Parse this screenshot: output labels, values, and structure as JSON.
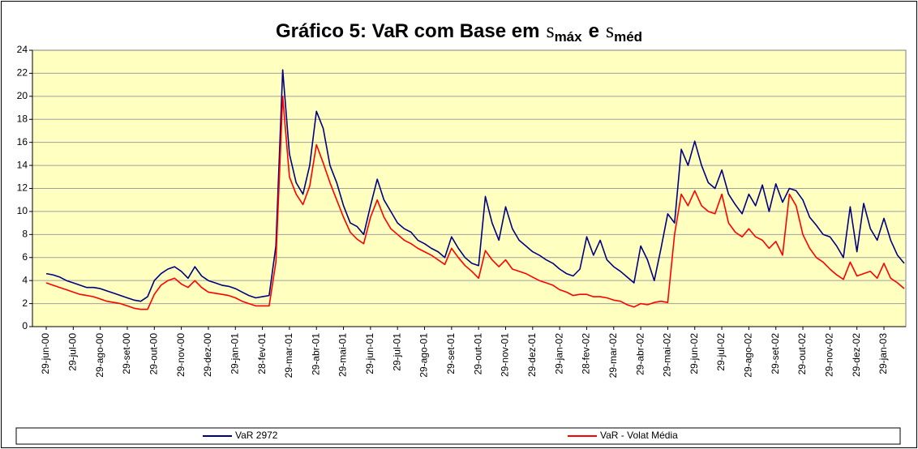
{
  "chart_data": {
    "type": "line",
    "title": [
      {
        "text": "Gráfico 5: VaR com Base em"
      },
      {
        "text": "s",
        "symbol": true
      },
      {
        "text": "máx",
        "sub": true
      },
      {
        "text": "e"
      },
      {
        "text": "s",
        "symbol": true
      },
      {
        "text": "méd",
        "sub": true
      }
    ],
    "ylim": [
      0,
      24
    ],
    "yticks": [
      0,
      2,
      4,
      6,
      8,
      10,
      12,
      14,
      16,
      18,
      20,
      22,
      24
    ],
    "grid": true,
    "legend": "bottom",
    "categories": [
      "29-jun-00",
      null,
      null,
      null,
      "29-jul-00",
      null,
      null,
      null,
      "29-ago-00",
      null,
      null,
      null,
      "29-set-00",
      null,
      null,
      null,
      "29-out-00",
      null,
      null,
      null,
      "29-nov-00",
      null,
      null,
      null,
      "29-dez-00",
      null,
      null,
      null,
      "29-jan-01",
      null,
      null,
      null,
      "28-fev-01",
      null,
      null,
      null,
      "29-mar-01",
      null,
      null,
      null,
      "29-abr-01",
      null,
      null,
      null,
      "29-mai-01",
      null,
      null,
      null,
      "29-jun-01",
      null,
      null,
      null,
      "29-jul-01",
      null,
      null,
      null,
      "29-ago-01",
      null,
      null,
      null,
      "29-set-01",
      null,
      null,
      null,
      "29-out-01",
      null,
      null,
      null,
      "29-nov-01",
      null,
      null,
      null,
      "29-dez-01",
      null,
      null,
      null,
      "29-jan-02",
      null,
      null,
      null,
      "28-fev-02",
      null,
      null,
      null,
      "29-mar-02",
      null,
      null,
      null,
      "29-abr-02",
      null,
      null,
      null,
      "29-mai-02",
      null,
      null,
      null,
      "29-jun-02",
      null,
      null,
      null,
      "29-jul-02",
      null,
      null,
      null,
      "29-ago-02",
      null,
      null,
      null,
      "29-set-02",
      null,
      null,
      null,
      "29-out-02",
      null,
      null,
      null,
      "29-nov-02",
      null,
      null,
      null,
      "29-dez-02",
      null,
      null,
      null,
      "29-jan-03",
      null,
      null,
      null
    ],
    "series": [
      {
        "name": "VaR 2972",
        "color": "#000080",
        "values": [
          4.6,
          4.5,
          4.3,
          4.0,
          3.8,
          3.6,
          3.4,
          3.4,
          3.3,
          3.1,
          2.9,
          2.7,
          2.5,
          2.3,
          2.2,
          2.6,
          4.0,
          4.6,
          5.0,
          5.2,
          4.8,
          4.2,
          5.2,
          4.4,
          4.0,
          3.8,
          3.6,
          3.5,
          3.3,
          3.0,
          2.7,
          2.5,
          2.6,
          2.7,
          7.0,
          22.3,
          15,
          12.5,
          11.5,
          14,
          18.7,
          17.2,
          14,
          12.5,
          10.5,
          9.0,
          8.7,
          8.0,
          10.5,
          12.8,
          11.0,
          10.0,
          9.0,
          8.5,
          8.2,
          7.5,
          7.2,
          6.8,
          6.5,
          6.0,
          7.8,
          6.8,
          6.0,
          5.5,
          5.3,
          11.3,
          9.0,
          7.5,
          10.4,
          8.5,
          7.5,
          7.0,
          6.5,
          6.2,
          5.8,
          5.5,
          5.0,
          4.6,
          4.4,
          5.0,
          7.8,
          6.2,
          7.5,
          5.8,
          5.2,
          4.8,
          4.3,
          3.8,
          7.0,
          5.8,
          4.0,
          6.8,
          9.8,
          9.0,
          15.4,
          14.0,
          16.1,
          14.0,
          12.5,
          12.0,
          13.6,
          11.5,
          10.6,
          9.8,
          11.5,
          10.5,
          12.3,
          10.0,
          12.4,
          10.8,
          12.0,
          11.8,
          11.0,
          9.5,
          8.8,
          8.0,
          7.8,
          7.0,
          6.0,
          10.4,
          6.5,
          10.7,
          8.5,
          7.5,
          9.4,
          7.5,
          6.2,
          5.5
        ]
      },
      {
        "name": "VaR - Volat Média",
        "color": "#ff0000",
        "values": [
          3.8,
          3.6,
          3.4,
          3.2,
          3.0,
          2.8,
          2.7,
          2.6,
          2.4,
          2.2,
          2.1,
          2.0,
          1.8,
          1.6,
          1.5,
          1.5,
          2.8,
          3.6,
          4.0,
          4.2,
          3.7,
          3.4,
          4.0,
          3.4,
          3.0,
          2.9,
          2.8,
          2.7,
          2.5,
          2.2,
          2.0,
          1.8,
          1.8,
          1.8,
          5.6,
          20.0,
          13,
          11.5,
          10.6,
          12.2,
          15.8,
          14.2,
          12.5,
          11,
          9.5,
          8.2,
          7.6,
          7.2,
          9.5,
          11.0,
          9.5,
          8.5,
          8,
          7.5,
          7.2,
          6.8,
          6.5,
          6.2,
          5.8,
          5.4,
          6.8,
          6.0,
          5.3,
          4.8,
          4.2,
          6.6,
          5.8,
          5.2,
          5.8,
          5.0,
          4.8,
          4.6,
          4.3,
          4.0,
          3.8,
          3.6,
          3.2,
          3.0,
          2.7,
          2.8,
          2.8,
          2.6,
          2.6,
          2.5,
          2.3,
          2.2,
          1.9,
          1.7,
          2.0,
          1.9,
          2.1,
          2.2,
          2.1,
          8.0,
          11.5,
          10.5,
          11.8,
          10.5,
          10.0,
          9.8,
          11.5,
          9.0,
          8.2,
          7.8,
          8.5,
          7.8,
          7.5,
          6.8,
          7.4,
          6.2,
          11.5,
          10.5,
          8.0,
          6.8,
          6.0,
          5.6,
          5.0,
          4.5,
          4.1,
          5.6,
          4.4,
          4.6,
          4.8,
          4.2,
          5.5,
          4.2,
          3.8,
          3.3
        ]
      }
    ]
  }
}
